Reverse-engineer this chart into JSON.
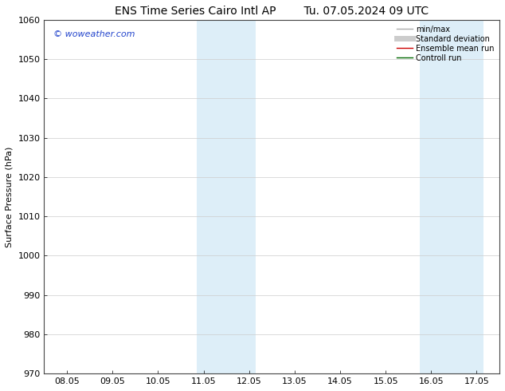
{
  "title_left": "ENS Time Series Cairo Intl AP",
  "title_right": "Tu. 07.05.2024 09 UTC",
  "ylabel": "Surface Pressure (hPa)",
  "ylim": [
    970,
    1060
  ],
  "yticks": [
    970,
    980,
    990,
    1000,
    1010,
    1020,
    1030,
    1040,
    1050,
    1060
  ],
  "xtick_labels": [
    "08.05",
    "09.05",
    "10.05",
    "11.05",
    "12.05",
    "13.05",
    "14.05",
    "15.05",
    "16.05",
    "17.05"
  ],
  "xtick_positions": [
    0,
    1,
    2,
    3,
    4,
    5,
    6,
    7,
    8,
    9
  ],
  "shaded_bands": [
    {
      "x_start": 2.85,
      "x_end": 4.15,
      "color": "#ddeef8"
    },
    {
      "x_start": 7.75,
      "x_end": 9.15,
      "color": "#ddeef8"
    }
  ],
  "watermark_text": "© woweather.com",
  "watermark_color": "#2244cc",
  "legend_items": [
    {
      "label": "min/max",
      "color": "#aaaaaa",
      "lw": 1.0,
      "type": "line"
    },
    {
      "label": "Standard deviation",
      "color": "#cccccc",
      "lw": 5,
      "type": "line"
    },
    {
      "label": "Ensemble mean run",
      "color": "#cc0000",
      "lw": 1.0,
      "type": "line"
    },
    {
      "label": "Controll run",
      "color": "#006600",
      "lw": 1.0,
      "type": "line"
    }
  ],
  "bg_color": "#ffffff",
  "grid_color": "#cccccc",
  "title_fontsize": 10,
  "tick_fontsize": 8,
  "ylabel_fontsize": 8,
  "watermark_fontsize": 8
}
